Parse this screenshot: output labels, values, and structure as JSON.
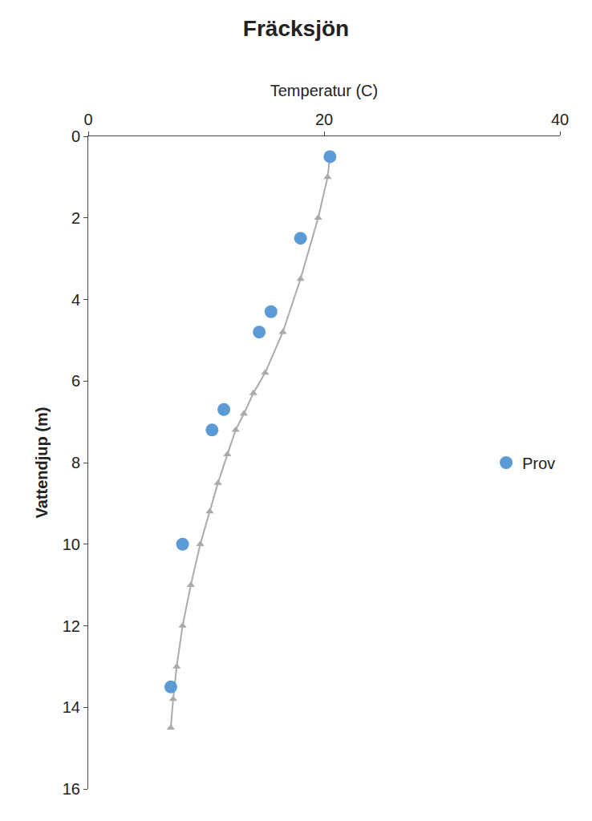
{
  "chart_data": {
    "type": "line",
    "title": "Fräcksjön",
    "x_label": "Temperatur (C)",
    "y_label": "Vattendjup (m)",
    "xlim": [
      0,
      40
    ],
    "ylim": [
      16,
      0
    ],
    "xticks": [
      0,
      20,
      40
    ],
    "yticks": [
      0,
      2,
      4,
      6,
      8,
      10,
      12,
      14,
      16
    ],
    "grid": false,
    "legend": "right",
    "series": [
      {
        "type": "line",
        "color": "#aaaaaa",
        "marker": "triangle",
        "x": [
          7.0,
          7.2,
          7.5,
          8.0,
          8.7,
          9.5,
          10.3,
          11.0,
          11.8,
          12.5,
          13.2,
          14.0,
          15.0,
          16.5,
          18.0,
          19.5,
          20.3,
          20.5
        ],
        "values": [
          14.5,
          13.8,
          13.0,
          12.0,
          11.0,
          10.0,
          9.2,
          8.5,
          7.8,
          7.2,
          6.8,
          6.3,
          5.8,
          4.8,
          3.5,
          2.0,
          1.0,
          0.5
        ]
      },
      {
        "name": "Prov",
        "type": "scatter",
        "color": "#5B9BD5",
        "marker": "circle",
        "x": [
          20.5,
          18.0,
          15.5,
          14.5,
          11.5,
          10.5,
          8.0,
          7.0
        ],
        "values": [
          0.5,
          2.5,
          4.3,
          4.8,
          6.7,
          7.2,
          10.0,
          13.5
        ]
      }
    ]
  }
}
